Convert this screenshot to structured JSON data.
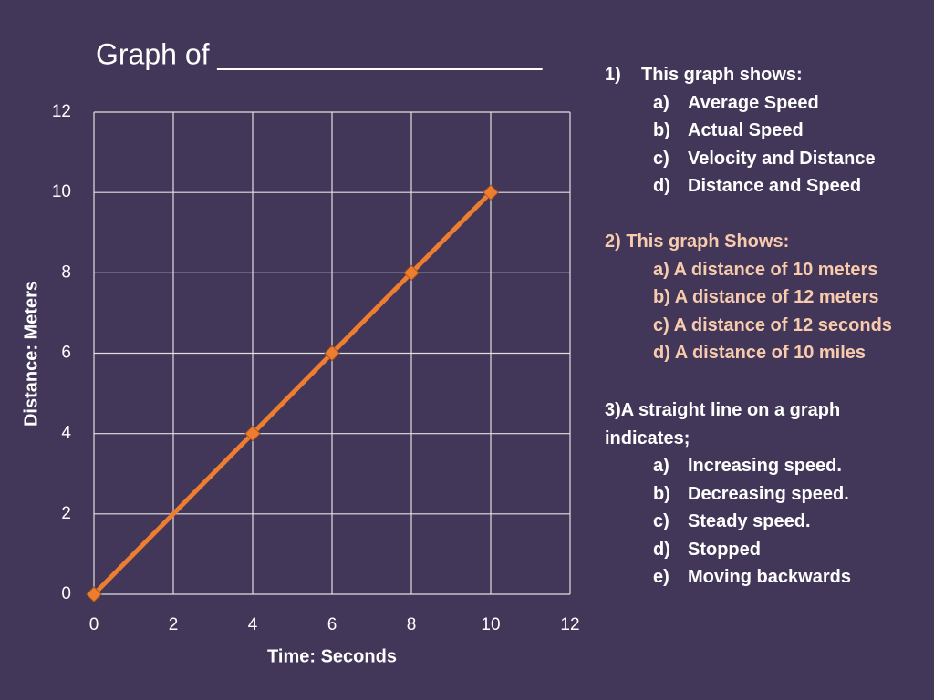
{
  "chart_data": {
    "type": "line",
    "title": "Graph of ____________________",
    "x_label": "Time:  Seconds",
    "y_label": "Distance:  Meters",
    "x": [
      0,
      4,
      6,
      8,
      10
    ],
    "values": [
      0,
      4,
      6,
      8,
      10
    ],
    "color": "#ed7d31",
    "marker": "diamond",
    "xlim": [
      0,
      12
    ],
    "ylim": [
      0,
      12
    ],
    "xticks": [
      0,
      2,
      4,
      6,
      8,
      10,
      12
    ],
    "yticks": [
      0,
      2,
      4,
      6,
      8,
      10,
      12
    ],
    "grid": true
  },
  "questions": [
    {
      "number": "1)",
      "prompt": "This graph shows:",
      "color": "#ffffff",
      "items": [
        {
          "label": "a)",
          "text": "Average Speed"
        },
        {
          "label": "b)",
          "text": "Actual Speed"
        },
        {
          "label": "c)",
          "text": "Velocity and Distance"
        },
        {
          "label": "d)",
          "text": "Distance and Speed"
        }
      ]
    },
    {
      "prompt": "2) This graph Shows:",
      "color": "#f8cbad",
      "items": [
        {
          "text": "a) A distance of 10 meters"
        },
        {
          "text": "b) A distance of 12 meters"
        },
        {
          "text": "c) A distance of 12 seconds"
        },
        {
          "text": "d) A distance of 10 miles"
        }
      ]
    },
    {
      "prompt": "3)A straight line on a graph indicates;",
      "color": "#ffffff",
      "items": [
        {
          "label": "a)",
          "text": "Increasing speed."
        },
        {
          "label": "b)",
          "text": "Decreasing speed."
        },
        {
          "label": "c)",
          "text": "Steady speed."
        },
        {
          "label": "d)",
          "text": "Stopped"
        },
        {
          "label": "e)",
          "text": "Moving backwards"
        }
      ]
    }
  ]
}
